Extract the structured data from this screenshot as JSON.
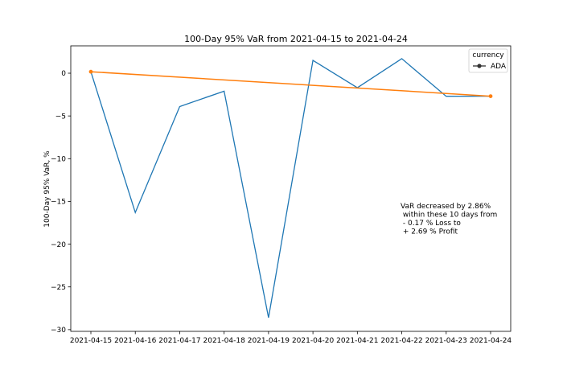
{
  "chart_data": {
    "type": "line",
    "title": "100-Day 95% VaR from 2021-04-15 to 2021-04-24",
    "xlabel": "",
    "ylabel": "100-Day 95% VaR, %",
    "categories": [
      "2021-04-15",
      "2021-04-16",
      "2021-04-17",
      "2021-04-18",
      "2021-04-19",
      "2021-04-20",
      "2021-04-21",
      "2021-04-22",
      "2021-04-23",
      "2021-04-24"
    ],
    "ylim": [
      -30.2,
      3.2
    ],
    "yticks": [
      0,
      -5,
      -10,
      -15,
      -20,
      -25,
      -30
    ],
    "grid": false,
    "legend": {
      "title": "currency",
      "placement": "top-right",
      "entries": [
        "ADA"
      ]
    },
    "series": [
      {
        "name": "ADA",
        "color": "#1f77b4",
        "values": [
          0.17,
          -16.3,
          -3.9,
          -2.1,
          -28.6,
          1.5,
          -1.7,
          1.7,
          -2.7,
          -2.69
        ]
      }
    ],
    "trend": {
      "color": "#ff7f0e",
      "start": {
        "x": "2021-04-15",
        "y": 0.17
      },
      "end": {
        "x": "2021-04-24",
        "y": -2.69
      }
    },
    "annotation": [
      "VaR decreased by 2.86%",
      " within these 10 days from",
      " - 0.17 % Loss to",
      " + 2.69 % Profit"
    ]
  }
}
